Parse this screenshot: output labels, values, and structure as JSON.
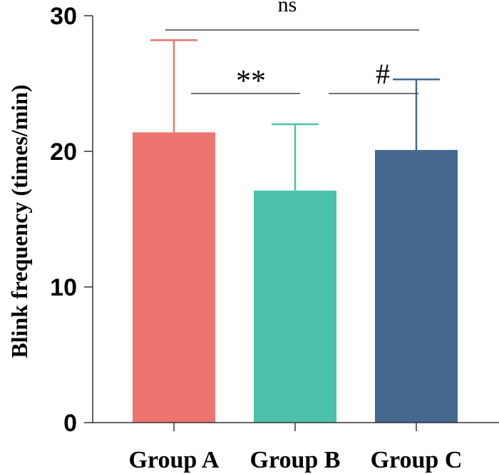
{
  "chart_data": {
    "type": "bar",
    "categories": [
      "Group A",
      "Group B",
      "Group C"
    ],
    "values": [
      21.4,
      17.1,
      20.1
    ],
    "error_upper": [
      28.2,
      22.0,
      25.3
    ],
    "colors": [
      "#ee7470",
      "#4bc1aa",
      "#46688f"
    ],
    "title": "",
    "xlabel": "",
    "ylabel": "Blink frequency (times/min)",
    "ylim": [
      0,
      30
    ],
    "yticks": [
      "0",
      "10",
      "20",
      "30"
    ],
    "grid": false,
    "significance": [
      {
        "from": "Group A",
        "to": "Group C",
        "label": "ns"
      },
      {
        "from": "Group A",
        "to": "Group B",
        "label": "**"
      },
      {
        "from": "Group B",
        "to": "Group C",
        "label": "#"
      }
    ]
  }
}
